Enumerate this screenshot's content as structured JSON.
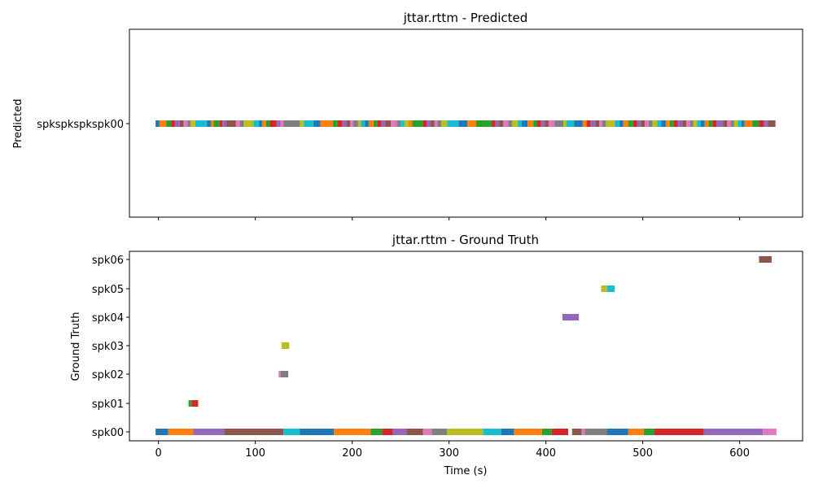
{
  "chart_data": [
    {
      "type": "timeline",
      "title": "jttar.rttm - Predicted",
      "ylabel": "Predicted",
      "xlim": [
        -30,
        665
      ],
      "rows": [
        "spkspkspkspk00"
      ],
      "segments": [
        {
          "row": 0,
          "start": -3,
          "end": 1,
          "color": "#1f77b4"
        },
        {
          "row": 0,
          "start": 1,
          "end": 8,
          "color": "#ff7f0e"
        },
        {
          "row": 0,
          "start": 8,
          "end": 13,
          "color": "#2ca02c"
        },
        {
          "row": 0,
          "start": 13,
          "end": 17,
          "color": "#d62728"
        },
        {
          "row": 0,
          "start": 17,
          "end": 22,
          "color": "#9467bd"
        },
        {
          "row": 0,
          "start": 22,
          "end": 26,
          "color": "#8c564b"
        },
        {
          "row": 0,
          "start": 26,
          "end": 30,
          "color": "#e377c2"
        },
        {
          "row": 0,
          "start": 30,
          "end": 33,
          "color": "#7f7f7f"
        },
        {
          "row": 0,
          "start": 33,
          "end": 38,
          "color": "#bcbd22"
        },
        {
          "row": 0,
          "start": 38,
          "end": 50,
          "color": "#17becf"
        },
        {
          "row": 0,
          "start": 50,
          "end": 54,
          "color": "#1f77b4"
        },
        {
          "row": 0,
          "start": 54,
          "end": 57,
          "color": "#ff7f0e"
        },
        {
          "row": 0,
          "start": 57,
          "end": 63,
          "color": "#2ca02c"
        },
        {
          "row": 0,
          "start": 63,
          "end": 66,
          "color": "#d62728"
        },
        {
          "row": 0,
          "start": 66,
          "end": 70,
          "color": "#9467bd"
        },
        {
          "row": 0,
          "start": 70,
          "end": 80,
          "color": "#8c564b"
        },
        {
          "row": 0,
          "start": 80,
          "end": 84,
          "color": "#e377c2"
        },
        {
          "row": 0,
          "start": 84,
          "end": 88,
          "color": "#7f7f7f"
        },
        {
          "row": 0,
          "start": 88,
          "end": 98,
          "color": "#bcbd22"
        },
        {
          "row": 0,
          "start": 98,
          "end": 104,
          "color": "#17becf"
        },
        {
          "row": 0,
          "start": 104,
          "end": 107,
          "color": "#1f77b4"
        },
        {
          "row": 0,
          "start": 107,
          "end": 111,
          "color": "#ff7f0e"
        },
        {
          "row": 0,
          "start": 111,
          "end": 115,
          "color": "#2ca02c"
        },
        {
          "row": 0,
          "start": 115,
          "end": 122,
          "color": "#d62728"
        },
        {
          "row": 0,
          "start": 122,
          "end": 126,
          "color": "#9467bd"
        },
        {
          "row": 0,
          "start": 126,
          "end": 129,
          "color": "#e377c2"
        },
        {
          "row": 0,
          "start": 129,
          "end": 146,
          "color": "#7f7f7f"
        },
        {
          "row": 0,
          "start": 146,
          "end": 150,
          "color": "#bcbd22"
        },
        {
          "row": 0,
          "start": 150,
          "end": 160,
          "color": "#17becf"
        },
        {
          "row": 0,
          "start": 160,
          "end": 167,
          "color": "#1f77b4"
        },
        {
          "row": 0,
          "start": 167,
          "end": 180,
          "color": "#ff7f0e"
        },
        {
          "row": 0,
          "start": 180,
          "end": 185,
          "color": "#2ca02c"
        },
        {
          "row": 0,
          "start": 185,
          "end": 190,
          "color": "#d62728"
        },
        {
          "row": 0,
          "start": 190,
          "end": 194,
          "color": "#9467bd"
        },
        {
          "row": 0,
          "start": 194,
          "end": 198,
          "color": "#8c564b"
        },
        {
          "row": 0,
          "start": 198,
          "end": 201,
          "color": "#e377c2"
        },
        {
          "row": 0,
          "start": 201,
          "end": 206,
          "color": "#7f7f7f"
        },
        {
          "row": 0,
          "start": 206,
          "end": 209,
          "color": "#bcbd22"
        },
        {
          "row": 0,
          "start": 209,
          "end": 213,
          "color": "#17becf"
        },
        {
          "row": 0,
          "start": 213,
          "end": 217,
          "color": "#1f77b4"
        },
        {
          "row": 0,
          "start": 217,
          "end": 222,
          "color": "#ff7f0e"
        },
        {
          "row": 0,
          "start": 222,
          "end": 226,
          "color": "#2ca02c"
        },
        {
          "row": 0,
          "start": 226,
          "end": 230,
          "color": "#d62728"
        },
        {
          "row": 0,
          "start": 230,
          "end": 234,
          "color": "#9467bd"
        },
        {
          "row": 0,
          "start": 234,
          "end": 240,
          "color": "#8c564b"
        },
        {
          "row": 0,
          "start": 240,
          "end": 246,
          "color": "#e377c2"
        },
        {
          "row": 0,
          "start": 246,
          "end": 250,
          "color": "#7f7f7f"
        },
        {
          "row": 0,
          "start": 250,
          "end": 254,
          "color": "#17becf"
        },
        {
          "row": 0,
          "start": 254,
          "end": 258,
          "color": "#bcbd22"
        },
        {
          "row": 0,
          "start": 258,
          "end": 262,
          "color": "#ff7f0e"
        },
        {
          "row": 0,
          "start": 262,
          "end": 273,
          "color": "#2ca02c"
        },
        {
          "row": 0,
          "start": 273,
          "end": 277,
          "color": "#d62728"
        },
        {
          "row": 0,
          "start": 277,
          "end": 281,
          "color": "#9467bd"
        },
        {
          "row": 0,
          "start": 281,
          "end": 285,
          "color": "#8c564b"
        },
        {
          "row": 0,
          "start": 285,
          "end": 288,
          "color": "#e377c2"
        },
        {
          "row": 0,
          "start": 288,
          "end": 292,
          "color": "#7f7f7f"
        },
        {
          "row": 0,
          "start": 292,
          "end": 298,
          "color": "#bcbd22"
        },
        {
          "row": 0,
          "start": 298,
          "end": 310,
          "color": "#17becf"
        },
        {
          "row": 0,
          "start": 310,
          "end": 319,
          "color": "#1f77b4"
        },
        {
          "row": 0,
          "start": 319,
          "end": 328,
          "color": "#ff7f0e"
        },
        {
          "row": 0,
          "start": 328,
          "end": 344,
          "color": "#2ca02c"
        },
        {
          "row": 0,
          "start": 344,
          "end": 348,
          "color": "#d62728"
        },
        {
          "row": 0,
          "start": 348,
          "end": 352,
          "color": "#9467bd"
        },
        {
          "row": 0,
          "start": 352,
          "end": 356,
          "color": "#8c564b"
        },
        {
          "row": 0,
          "start": 356,
          "end": 361,
          "color": "#e377c2"
        },
        {
          "row": 0,
          "start": 361,
          "end": 365,
          "color": "#7f7f7f"
        },
        {
          "row": 0,
          "start": 365,
          "end": 371,
          "color": "#bcbd22"
        },
        {
          "row": 0,
          "start": 371,
          "end": 375,
          "color": "#17becf"
        },
        {
          "row": 0,
          "start": 375,
          "end": 381,
          "color": "#1f77b4"
        },
        {
          "row": 0,
          "start": 381,
          "end": 387,
          "color": "#ff7f0e"
        },
        {
          "row": 0,
          "start": 387,
          "end": 391,
          "color": "#2ca02c"
        },
        {
          "row": 0,
          "start": 391,
          "end": 395,
          "color": "#d62728"
        },
        {
          "row": 0,
          "start": 395,
          "end": 399,
          "color": "#9467bd"
        },
        {
          "row": 0,
          "start": 399,
          "end": 403,
          "color": "#8c564b"
        },
        {
          "row": 0,
          "start": 403,
          "end": 409,
          "color": "#e377c2"
        },
        {
          "row": 0,
          "start": 409,
          "end": 418,
          "color": "#7f7f7f"
        },
        {
          "row": 0,
          "start": 418,
          "end": 421,
          "color": "#bcbd22"
        },
        {
          "row": 0,
          "start": 421,
          "end": 429,
          "color": "#17becf"
        },
        {
          "row": 0,
          "start": 429,
          "end": 438,
          "color": "#1f77b4"
        },
        {
          "row": 0,
          "start": 438,
          "end": 442,
          "color": "#ff7f0e"
        },
        {
          "row": 0,
          "start": 442,
          "end": 446,
          "color": "#d62728"
        },
        {
          "row": 0,
          "start": 446,
          "end": 451,
          "color": "#9467bd"
        },
        {
          "row": 0,
          "start": 451,
          "end": 455,
          "color": "#8c564b"
        },
        {
          "row": 0,
          "start": 455,
          "end": 458,
          "color": "#e377c2"
        },
        {
          "row": 0,
          "start": 458,
          "end": 462,
          "color": "#7f7f7f"
        },
        {
          "row": 0,
          "start": 462,
          "end": 471,
          "color": "#bcbd22"
        },
        {
          "row": 0,
          "start": 471,
          "end": 476,
          "color": "#17becf"
        },
        {
          "row": 0,
          "start": 476,
          "end": 480,
          "color": "#1f77b4"
        },
        {
          "row": 0,
          "start": 480,
          "end": 485,
          "color": "#ff7f0e"
        },
        {
          "row": 0,
          "start": 485,
          "end": 490,
          "color": "#2ca02c"
        },
        {
          "row": 0,
          "start": 490,
          "end": 494,
          "color": "#d62728"
        },
        {
          "row": 0,
          "start": 494,
          "end": 498,
          "color": "#9467bd"
        },
        {
          "row": 0,
          "start": 498,
          "end": 502,
          "color": "#8c564b"
        },
        {
          "row": 0,
          "start": 502,
          "end": 506,
          "color": "#e377c2"
        },
        {
          "row": 0,
          "start": 506,
          "end": 510,
          "color": "#7f7f7f"
        },
        {
          "row": 0,
          "start": 510,
          "end": 515,
          "color": "#bcbd22"
        },
        {
          "row": 0,
          "start": 515,
          "end": 519,
          "color": "#17becf"
        },
        {
          "row": 0,
          "start": 519,
          "end": 524,
          "color": "#1f77b4"
        },
        {
          "row": 0,
          "start": 524,
          "end": 528,
          "color": "#ff7f0e"
        },
        {
          "row": 0,
          "start": 528,
          "end": 532,
          "color": "#2ca02c"
        },
        {
          "row": 0,
          "start": 532,
          "end": 536,
          "color": "#d62728"
        },
        {
          "row": 0,
          "start": 536,
          "end": 541,
          "color": "#9467bd"
        },
        {
          "row": 0,
          "start": 541,
          "end": 545,
          "color": "#8c564b"
        },
        {
          "row": 0,
          "start": 545,
          "end": 549,
          "color": "#e377c2"
        },
        {
          "row": 0,
          "start": 549,
          "end": 552,
          "color": "#7f7f7f"
        },
        {
          "row": 0,
          "start": 552,
          "end": 556,
          "color": "#bcbd22"
        },
        {
          "row": 0,
          "start": 556,
          "end": 560,
          "color": "#17becf"
        },
        {
          "row": 0,
          "start": 560,
          "end": 564,
          "color": "#1f77b4"
        },
        {
          "row": 0,
          "start": 564,
          "end": 568,
          "color": "#ff7f0e"
        },
        {
          "row": 0,
          "start": 568,
          "end": 572,
          "color": "#2ca02c"
        },
        {
          "row": 0,
          "start": 572,
          "end": 576,
          "color": "#d62728"
        },
        {
          "row": 0,
          "start": 576,
          "end": 583,
          "color": "#9467bd"
        },
        {
          "row": 0,
          "start": 583,
          "end": 587,
          "color": "#8c564b"
        },
        {
          "row": 0,
          "start": 587,
          "end": 591,
          "color": "#e377c2"
        },
        {
          "row": 0,
          "start": 591,
          "end": 594,
          "color": "#7f7f7f"
        },
        {
          "row": 0,
          "start": 594,
          "end": 598,
          "color": "#bcbd22"
        },
        {
          "row": 0,
          "start": 598,
          "end": 602,
          "color": "#17becf"
        },
        {
          "row": 0,
          "start": 602,
          "end": 605,
          "color": "#1f77b4"
        },
        {
          "row": 0,
          "start": 605,
          "end": 613,
          "color": "#ff7f0e"
        },
        {
          "row": 0,
          "start": 613,
          "end": 620,
          "color": "#2ca02c"
        },
        {
          "row": 0,
          "start": 620,
          "end": 625,
          "color": "#d62728"
        },
        {
          "row": 0,
          "start": 625,
          "end": 629,
          "color": "#9467bd"
        },
        {
          "row": 0,
          "start": 629,
          "end": 637,
          "color": "#8c564b"
        }
      ]
    },
    {
      "type": "timeline",
      "title": "jttar.rttm - Ground Truth",
      "xlabel": "Time (s)",
      "ylabel": "Ground Truth",
      "xlim": [
        -30,
        665
      ],
      "xticks": [
        "0",
        "100",
        "200",
        "300",
        "400",
        "500",
        "600"
      ],
      "rows": [
        "spk00",
        "spk01",
        "spk02",
        "spk03",
        "spk04",
        "spk05",
        "spk06"
      ],
      "segments": [
        {
          "row": 0,
          "start": -3,
          "end": 10,
          "color": "#1f77b4"
        },
        {
          "row": 0,
          "start": 10,
          "end": 36,
          "color": "#ff7f0e"
        },
        {
          "row": 0,
          "start": 36,
          "end": 68,
          "color": "#9467bd"
        },
        {
          "row": 0,
          "start": 68,
          "end": 129,
          "color": "#8c564b"
        },
        {
          "row": 0,
          "start": 129,
          "end": 146,
          "color": "#17becf"
        },
        {
          "row": 0,
          "start": 146,
          "end": 181,
          "color": "#1f77b4"
        },
        {
          "row": 0,
          "start": 181,
          "end": 219,
          "color": "#ff7f0e"
        },
        {
          "row": 0,
          "start": 219,
          "end": 231,
          "color": "#2ca02c"
        },
        {
          "row": 0,
          "start": 231,
          "end": 242,
          "color": "#d62728"
        },
        {
          "row": 0,
          "start": 242,
          "end": 256,
          "color": "#9467bd"
        },
        {
          "row": 0,
          "start": 256,
          "end": 273,
          "color": "#8c564b"
        },
        {
          "row": 0,
          "start": 273,
          "end": 282,
          "color": "#e377c2"
        },
        {
          "row": 0,
          "start": 282,
          "end": 298,
          "color": "#7f7f7f"
        },
        {
          "row": 0,
          "start": 298,
          "end": 335,
          "color": "#bcbd22"
        },
        {
          "row": 0,
          "start": 335,
          "end": 354,
          "color": "#17becf"
        },
        {
          "row": 0,
          "start": 354,
          "end": 367,
          "color": "#1f77b4"
        },
        {
          "row": 0,
          "start": 367,
          "end": 396,
          "color": "#ff7f0e"
        },
        {
          "row": 0,
          "start": 396,
          "end": 406,
          "color": "#2ca02c"
        },
        {
          "row": 0,
          "start": 406,
          "end": 423,
          "color": "#d62728"
        },
        {
          "row": 0,
          "start": 427,
          "end": 437,
          "color": "#8c564b"
        },
        {
          "row": 0,
          "start": 437,
          "end": 440,
          "color": "#e377c2"
        },
        {
          "row": 0,
          "start": 440,
          "end": 463,
          "color": "#7f7f7f"
        },
        {
          "row": 0,
          "start": 463,
          "end": 485,
          "color": "#1f77b4"
        },
        {
          "row": 0,
          "start": 485,
          "end": 501,
          "color": "#ff7f0e"
        },
        {
          "row": 0,
          "start": 501,
          "end": 512,
          "color": "#2ca02c"
        },
        {
          "row": 0,
          "start": 512,
          "end": 563,
          "color": "#d62728"
        },
        {
          "row": 0,
          "start": 563,
          "end": 624,
          "color": "#9467bd"
        },
        {
          "row": 0,
          "start": 624,
          "end": 638,
          "color": "#e377c2"
        },
        {
          "row": 1,
          "start": 31,
          "end": 34,
          "color": "#2ca02c"
        },
        {
          "row": 1,
          "start": 34,
          "end": 41,
          "color": "#d62728"
        },
        {
          "row": 2,
          "start": 124,
          "end": 126,
          "color": "#e377c2"
        },
        {
          "row": 2,
          "start": 126,
          "end": 134,
          "color": "#7f7f7f"
        },
        {
          "row": 3,
          "start": 127,
          "end": 135,
          "color": "#bcbd22"
        },
        {
          "row": 4,
          "start": 417,
          "end": 434,
          "color": "#9467bd"
        },
        {
          "row": 5,
          "start": 457,
          "end": 463,
          "color": "#bcbd22"
        },
        {
          "row": 5,
          "start": 463,
          "end": 471,
          "color": "#17becf"
        },
        {
          "row": 6,
          "start": 620,
          "end": 633,
          "color": "#8c564b"
        }
      ]
    }
  ]
}
